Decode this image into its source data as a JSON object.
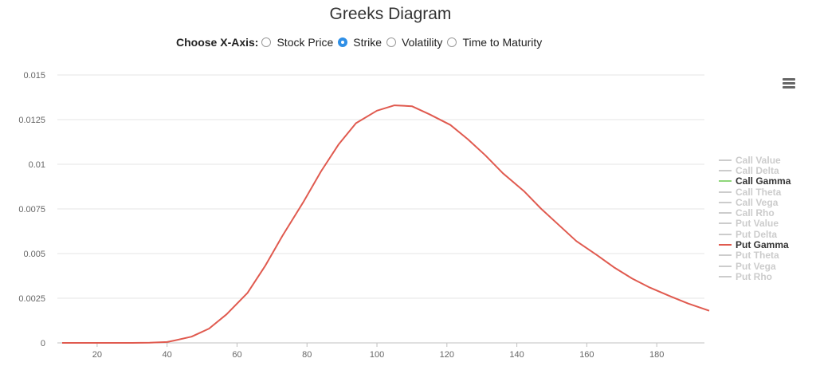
{
  "title": "Greeks Diagram",
  "x_axis_chooser": {
    "label": "Choose X-Axis:",
    "options": [
      {
        "label": "Stock Price",
        "selected": false
      },
      {
        "label": "Strike",
        "selected": true
      },
      {
        "label": "Volatility",
        "selected": false
      },
      {
        "label": "Time to Maturity",
        "selected": false
      }
    ]
  },
  "menu_icon": "hamburger-menu-icon",
  "colors": {
    "put_gamma": "#e05a4f",
    "call_gamma": "#8fd67a",
    "inactive": "#cccccc",
    "selected_radio": "#2f8fe6"
  },
  "legend": [
    {
      "label": "Call Value",
      "active": false
    },
    {
      "label": "Call Delta",
      "active": false
    },
    {
      "label": "Call Gamma",
      "active": true,
      "color": "#8fd67a"
    },
    {
      "label": "Call Theta",
      "active": false
    },
    {
      "label": "Call Vega",
      "active": false
    },
    {
      "label": "Call Rho",
      "active": false
    },
    {
      "label": "Put Value",
      "active": false
    },
    {
      "label": "Put Delta",
      "active": false
    },
    {
      "label": "Put Gamma",
      "active": true,
      "color": "#e05a4f"
    },
    {
      "label": "Put Theta",
      "active": false
    },
    {
      "label": "Put Vega",
      "active": false
    },
    {
      "label": "Put Rho",
      "active": false
    }
  ],
  "chart_data": {
    "type": "line",
    "title": "Greeks Diagram",
    "xlabel": "",
    "ylabel": "",
    "xlim": [
      10,
      195
    ],
    "ylim": [
      0,
      0.015
    ],
    "x_ticks": [
      20,
      40,
      60,
      80,
      100,
      120,
      140,
      160,
      180
    ],
    "y_ticks": [
      {
        "value": 0,
        "label": "0"
      },
      {
        "value": 0.0025,
        "label": "0.0025"
      },
      {
        "value": 0.005,
        "label": "0.005"
      },
      {
        "value": 0.0075,
        "label": "0.0075"
      },
      {
        "value": 0.01,
        "label": "0.01"
      },
      {
        "value": 0.0125,
        "label": "0.0125"
      },
      {
        "value": 0.015,
        "label": "0.015"
      }
    ],
    "grid": true,
    "legend_position": "right",
    "series": [
      {
        "name": "Put Gamma",
        "color": "#e05a4f",
        "x": [
          10,
          15,
          20,
          25,
          30,
          35,
          40,
          42,
          47,
          52,
          57,
          63,
          68,
          73,
          79,
          84,
          89,
          94,
          100,
          105,
          110,
          115,
          121,
          126,
          131,
          136,
          142,
          147,
          152,
          157,
          163,
          168,
          173,
          178,
          184,
          189,
          195
        ],
        "values": [
          0,
          0,
          0,
          0,
          0,
          1e-05,
          5e-05,
          0.00013,
          0.00035,
          0.0008,
          0.0016,
          0.0028,
          0.0043,
          0.006,
          0.0079,
          0.0096,
          0.0111,
          0.0123,
          0.013,
          0.0133,
          0.01325,
          0.0128,
          0.0122,
          0.0114,
          0.0105,
          0.0095,
          0.0085,
          0.0075,
          0.0066,
          0.0057,
          0.0049,
          0.0042,
          0.0036,
          0.0031,
          0.0026,
          0.0022,
          0.0018
        ]
      }
    ]
  }
}
